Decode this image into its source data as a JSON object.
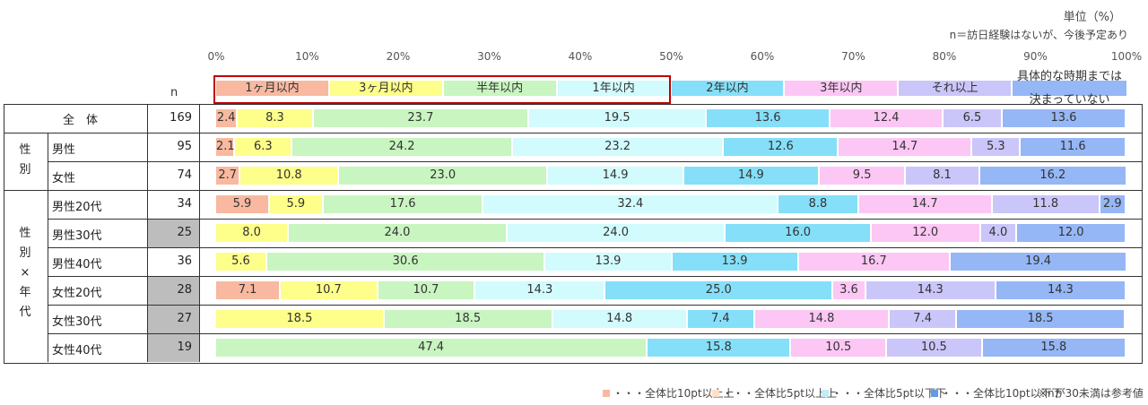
{
  "chart_data": {
    "type": "bar",
    "orientation": "horizontal-stacked-100",
    "unit_label": "単位（%）",
    "note": "n＝訪日経験はないが、今後予定あり",
    "n_header": "n",
    "xlim": [
      0,
      100
    ],
    "x_ticks": [
      "0%",
      "10%",
      "20%",
      "30%",
      "40%",
      "50%",
      "60%",
      "70%",
      "80%",
      "90%",
      "100%"
    ],
    "categories": [
      "1ヶ月以内",
      "3ヶ月以内",
      "半年以内",
      "1年以内",
      "2年以内",
      "3年以内",
      "それ以上",
      "具体的な時期までは決まっていない"
    ],
    "last_category_lines": [
      "具体的な時期までは",
      "決まっていない"
    ],
    "colors": [
      "#f8b9a0",
      "#fefe8a",
      "#c9f5c0",
      "#d2fbfd",
      "#85dff8",
      "#fcc7f4",
      "#cbc6f9",
      "#96b7f6"
    ],
    "group_labels": {
      "total": "全　体",
      "gender": [
        "性",
        "別"
      ],
      "gender_age": [
        "性",
        "別",
        "×",
        "年",
        "代"
      ]
    },
    "rows": [
      {
        "label": "",
        "n": "169",
        "shaded": false,
        "values": [
          2.4,
          8.3,
          23.7,
          19.5,
          13.6,
          12.4,
          6.5,
          13.6
        ]
      },
      {
        "label": "男性",
        "n": "95",
        "shaded": false,
        "values": [
          2.1,
          6.3,
          24.2,
          23.2,
          12.6,
          14.7,
          5.3,
          11.6
        ]
      },
      {
        "label": "女性",
        "n": "74",
        "shaded": false,
        "values": [
          2.7,
          10.8,
          23.0,
          14.9,
          14.9,
          9.5,
          8.1,
          16.2
        ]
      },
      {
        "label": "男性20代",
        "n": "34",
        "shaded": false,
        "values": [
          5.9,
          5.9,
          17.6,
          32.4,
          8.8,
          14.7,
          11.8,
          2.9
        ]
      },
      {
        "label": "男性30代",
        "n": "25",
        "shaded": true,
        "values": [
          0,
          8.0,
          24.0,
          24.0,
          16.0,
          12.0,
          4.0,
          12.0
        ]
      },
      {
        "label": "男性40代",
        "n": "36",
        "shaded": false,
        "values": [
          0,
          5.6,
          30.6,
          13.9,
          13.9,
          16.7,
          0,
          19.4
        ]
      },
      {
        "label": "女性20代",
        "n": "28",
        "shaded": true,
        "values": [
          7.1,
          10.7,
          10.7,
          14.3,
          25.0,
          3.6,
          14.3,
          14.3
        ]
      },
      {
        "label": "女性30代",
        "n": "27",
        "shaded": true,
        "values": [
          0,
          18.5,
          18.5,
          14.8,
          7.4,
          14.8,
          7.4,
          18.5
        ]
      },
      {
        "label": "女性40代",
        "n": "19",
        "shaded": true,
        "values": [
          0,
          0,
          47.4,
          0,
          15.8,
          10.5,
          10.5,
          15.8
        ]
      }
    ],
    "footer": [
      {
        "label": "・・・全体比10pt以上上",
        "color": "#f8b9a0"
      },
      {
        "label": "・・・全体比5pt以上上",
        "color": "#fde0cc"
      },
      {
        "label": "・・・全体比5pt以下下",
        "color": "#c5eaf8"
      },
      {
        "label": "・・・全体比10pt以下下",
        "color": "#5f9be8"
      }
    ],
    "footer_note": "※nが30未満は参考値"
  }
}
